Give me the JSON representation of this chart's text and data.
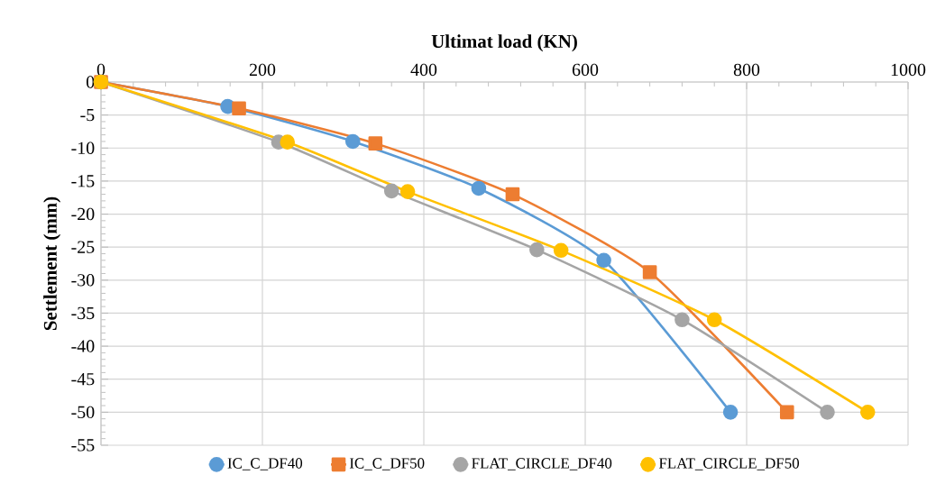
{
  "chart_data": {
    "type": "line",
    "xlabel": "Ultimat load (KN)",
    "ylabel": "Settlement (mm)",
    "xlim": [
      0,
      1000
    ],
    "xticks": [
      0,
      200,
      400,
      600,
      800,
      1000
    ],
    "ylim": [
      -55,
      0
    ],
    "yticks": [
      -55,
      -50,
      -45,
      -40,
      -35,
      -30,
      -25,
      -20,
      -15,
      -10,
      -5,
      0
    ],
    "grid": true,
    "legend": "bottom",
    "marker": "circle",
    "line_style": "solid",
    "series": [
      {
        "name": "IC_C_DF40",
        "color": "#5b9bd5",
        "x": [
          0,
          157,
          312,
          468,
          623,
          780
        ],
        "values": [
          0,
          -3.7,
          -9.0,
          -16.1,
          -27.0,
          -50
        ]
      },
      {
        "name": "IC_C_DF50",
        "color": "#ed7d31",
        "marker": "square",
        "x": [
          0,
          171,
          340,
          510,
          680,
          850
        ],
        "values": [
          0,
          -4.0,
          -9.3,
          -17.0,
          -28.8,
          -50
        ]
      },
      {
        "name": "FLAT_CIRCLE_DF40",
        "color": "#a5a5a5",
        "x": [
          0,
          220,
          360,
          540,
          720,
          900
        ],
        "values": [
          0,
          -9.1,
          -16.5,
          -25.4,
          -36.0,
          -50
        ]
      },
      {
        "name": "FLAT_CIRCLE_DF50",
        "color": "#ffc000",
        "x": [
          0,
          231,
          380,
          570,
          760,
          950
        ],
        "values": [
          0,
          -9.1,
          -16.6,
          -25.5,
          -36.0,
          -50
        ]
      }
    ]
  }
}
